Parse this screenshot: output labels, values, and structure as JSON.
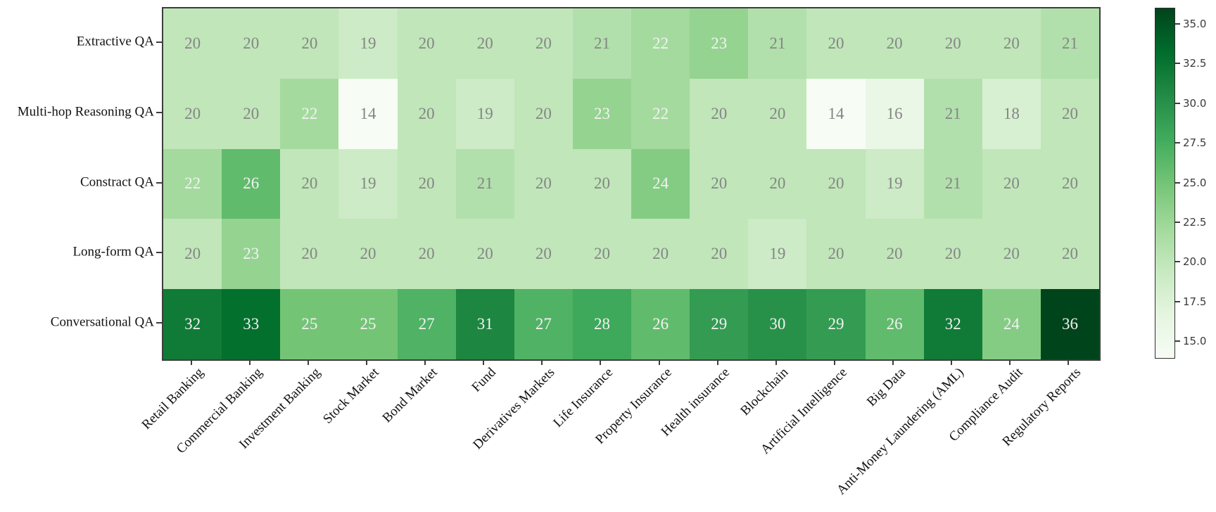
{
  "chart_data": {
    "type": "heatmap",
    "title": "",
    "xlabel": "",
    "ylabel": "",
    "rows": [
      "Extractive QA",
      "Multi-hop Reasoning QA",
      "Constract QA",
      "Long-form QA",
      "Conversational QA"
    ],
    "columns": [
      "Retail Banking",
      "Commercial Banking",
      "Investment Banking",
      "Stock Market",
      "Bond Market",
      "Fund",
      "Derivatives Markets",
      "Life Insurance",
      "Property Insurance",
      "Health insurance",
      "Blockchain",
      "Artificial Intelligence",
      "Big Data",
      "Anti-Money Laundering (AML)",
      "Compliance Audit",
      "Regulatory Reports"
    ],
    "values": [
      [
        20,
        20,
        20,
        19,
        20,
        20,
        20,
        21,
        22,
        23,
        21,
        20,
        20,
        20,
        20,
        21
      ],
      [
        20,
        20,
        22,
        14,
        20,
        19,
        20,
        23,
        22,
        20,
        20,
        14,
        16,
        21,
        18,
        20
      ],
      [
        22,
        26,
        20,
        19,
        20,
        21,
        20,
        20,
        24,
        20,
        20,
        20,
        19,
        21,
        20,
        20
      ],
      [
        20,
        23,
        20,
        20,
        20,
        20,
        20,
        20,
        20,
        20,
        19,
        20,
        20,
        20,
        20,
        20
      ],
      [
        32,
        33,
        25,
        25,
        27,
        31,
        27,
        28,
        26,
        29,
        30,
        29,
        26,
        32,
        24,
        36
      ]
    ],
    "vmin": 14,
    "vmax": 36,
    "colormap": {
      "name": "Greens",
      "anchors": [
        "#f7fcf5",
        "#e5f5e0",
        "#c7e9c0",
        "#a1d99b",
        "#74c476",
        "#41ab5d",
        "#238b45",
        "#006d2c",
        "#00441b"
      ]
    },
    "colorbar": {
      "position": "right",
      "tick_values": [
        35.0,
        32.5,
        30.0,
        27.5,
        25.0,
        22.5,
        20.0,
        17.5,
        15.0
      ],
      "tick_labels": [
        "35.0",
        "32.5",
        "30.0",
        "27.5",
        "25.0",
        "22.5",
        "20.0",
        "17.5",
        "15.0"
      ]
    },
    "annotation": {
      "white_text_threshold": 22,
      "light_cell_text_color": "#858585",
      "dark_cell_text_color": "#f2f2f2"
    },
    "grid": false,
    "legend_position": "right colorbar"
  }
}
